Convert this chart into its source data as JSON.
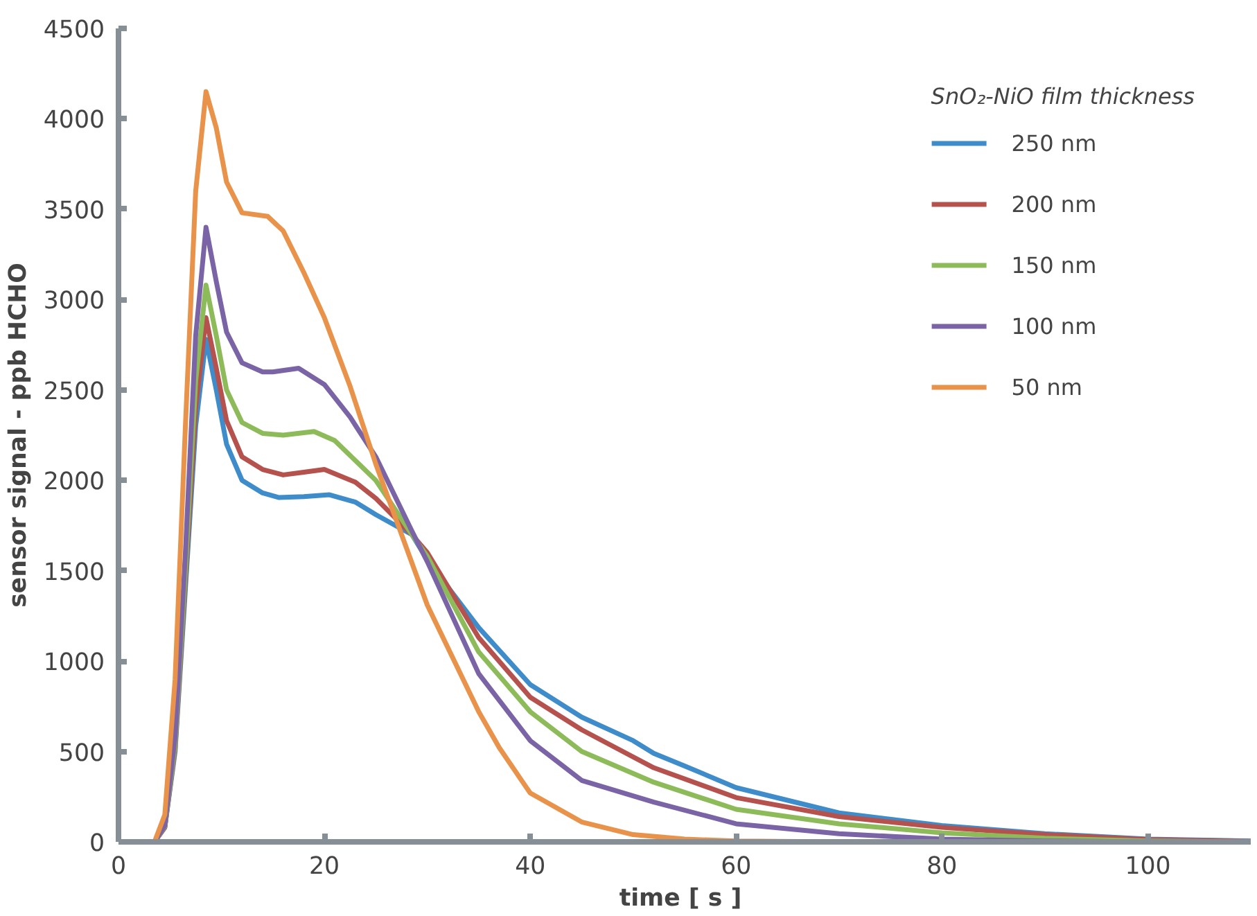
{
  "chart_data": {
    "type": "line",
    "xlabel": "time  [ s ]",
    "ylabel": "sensor signal - ppb HCHO",
    "legend_title": "SnO₂-NiO film thickness",
    "legend": "top right",
    "grid": false,
    "marker": "none",
    "line_style": "solid",
    "xlim": [
      0,
      110
    ],
    "xticks": [
      0,
      20,
      40,
      60,
      80,
      100
    ],
    "ylim": [
      0,
      4500
    ],
    "yticks": [
      0,
      500,
      1000,
      1500,
      2000,
      2500,
      3000,
      3500,
      4000,
      4500
    ],
    "series": [
      {
        "name": "250 nm",
        "color": "#3f8ccb",
        "x": [
          0,
          3.5,
          4.5,
          5.5,
          6.5,
          7.5,
          8.5,
          9.5,
          10.5,
          12,
          14,
          15.6,
          18,
          20.5,
          23,
          25,
          28.5,
          30,
          35,
          40,
          45,
          50,
          52,
          55,
          60,
          70,
          80,
          90,
          100,
          110
        ],
        "values": [
          0,
          0,
          80,
          500,
          1400,
          2300,
          2780,
          2500,
          2200,
          2000,
          1930,
          1905,
          1910,
          1920,
          1880,
          1810,
          1700,
          1560,
          1185,
          870,
          690,
          560,
          490,
          420,
          300,
          160,
          90,
          45,
          15,
          5
        ]
      },
      {
        "name": "200 nm",
        "color": "#b5524e",
        "x": [
          0,
          3.5,
          4.5,
          5.5,
          6.5,
          7.5,
          8.5,
          9.5,
          10.5,
          12,
          14,
          16,
          18,
          20,
          23,
          25,
          28.5,
          30,
          35,
          40,
          45,
          52,
          60,
          70,
          80,
          90,
          100,
          110
        ],
        "values": [
          0,
          0,
          80,
          520,
          1450,
          2400,
          2900,
          2620,
          2330,
          2130,
          2060,
          2030,
          2045,
          2060,
          1990,
          1900,
          1700,
          1600,
          1130,
          800,
          620,
          410,
          245,
          140,
          80,
          40,
          12,
          3
        ]
      },
      {
        "name": "150 nm",
        "color": "#8dbb5a",
        "x": [
          0,
          3.5,
          4.5,
          5.5,
          6.5,
          7.5,
          8.5,
          9.5,
          10.5,
          12,
          14,
          16,
          19,
          21,
          23,
          25,
          28.5,
          30,
          35,
          40,
          45,
          52,
          60,
          70,
          80,
          90,
          100,
          110
        ],
        "values": [
          0,
          0,
          85,
          540,
          1500,
          2550,
          3080,
          2800,
          2500,
          2320,
          2260,
          2250,
          2270,
          2220,
          2110,
          2000,
          1700,
          1580,
          1050,
          720,
          500,
          330,
          180,
          100,
          50,
          20,
          5,
          0
        ]
      },
      {
        "name": "100 nm",
        "color": "#7a64a6",
        "x": [
          0,
          3.5,
          4.5,
          5.5,
          6.5,
          7.5,
          8.5,
          9.5,
          10.5,
          12,
          14,
          15,
          17.5,
          20,
          22.5,
          25,
          28.5,
          30,
          35,
          40,
          45,
          52,
          60,
          70,
          80,
          90,
          100,
          110
        ],
        "values": [
          0,
          0,
          90,
          580,
          1600,
          2800,
          3400,
          3100,
          2820,
          2650,
          2600,
          2600,
          2620,
          2530,
          2350,
          2130,
          1720,
          1550,
          930,
          560,
          340,
          220,
          100,
          45,
          15,
          5,
          0,
          0
        ]
      },
      {
        "name": "50 nm",
        "color": "#e8924a",
        "x": [
          0,
          3.5,
          4.5,
          5.5,
          6.5,
          7.5,
          8.5,
          9.5,
          10.5,
          12,
          14.5,
          16,
          18,
          20,
          22.5,
          25,
          30,
          35,
          37,
          40,
          45,
          50,
          55,
          60,
          70,
          110
        ],
        "values": [
          0,
          0,
          150,
          900,
          2300,
          3600,
          4150,
          3950,
          3650,
          3480,
          3460,
          3380,
          3150,
          2900,
          2520,
          2090,
          1310,
          720,
          520,
          270,
          110,
          40,
          15,
          5,
          0,
          0
        ]
      }
    ]
  }
}
